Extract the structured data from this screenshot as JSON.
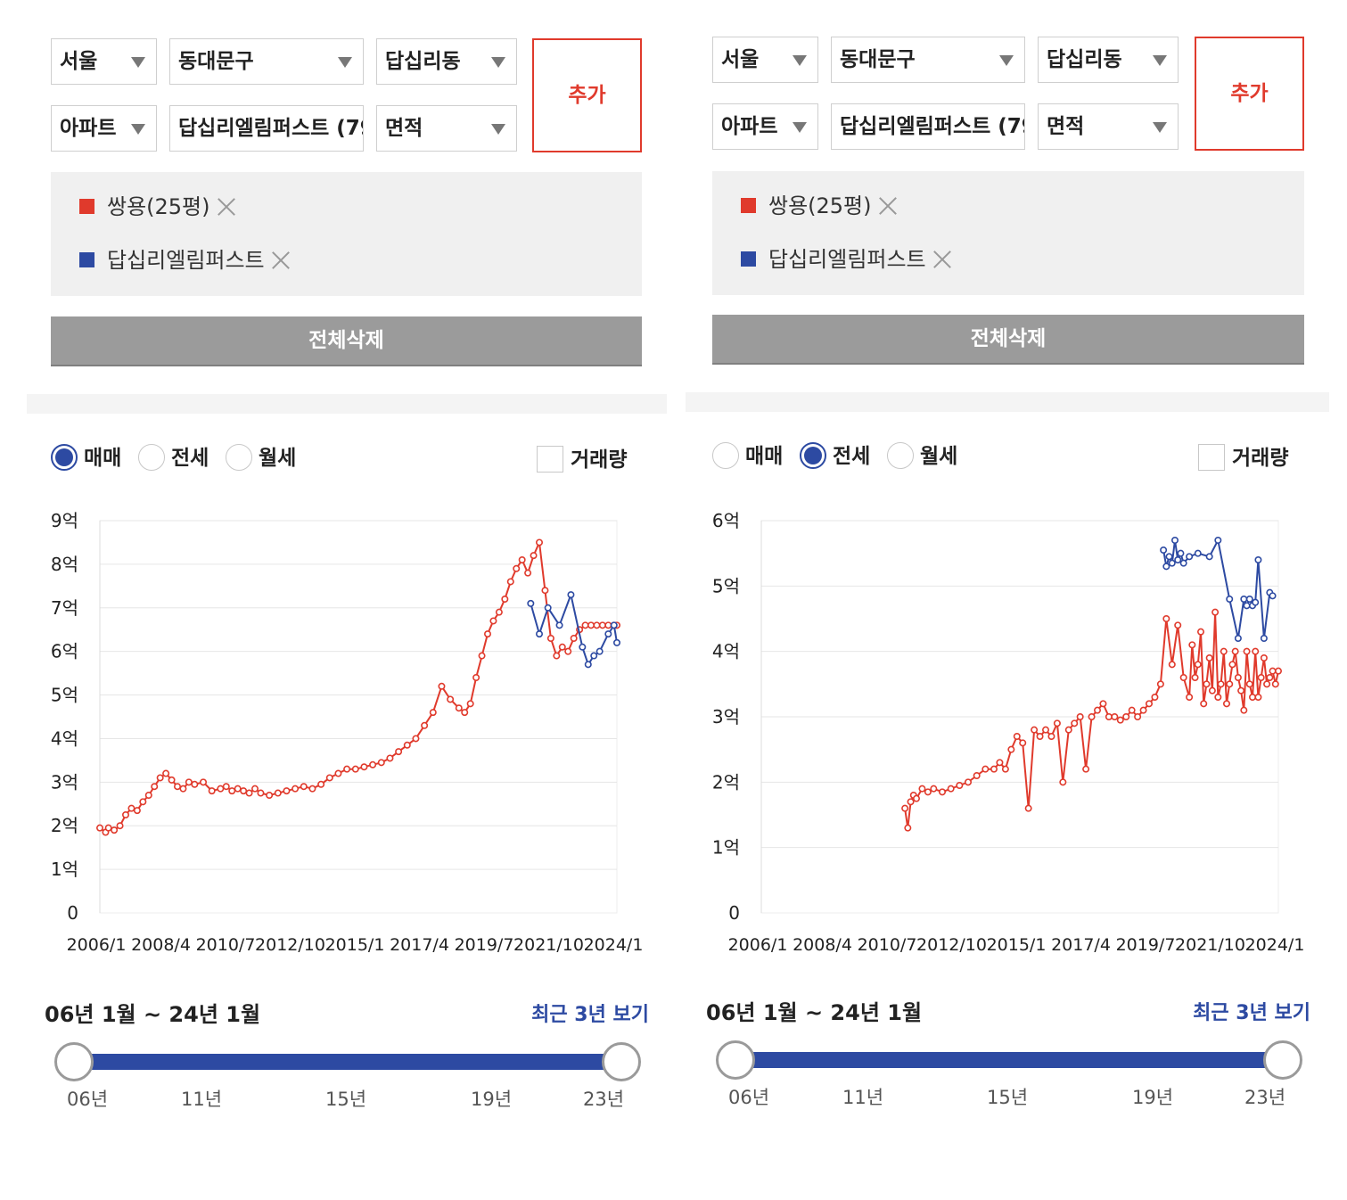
{
  "panels": [
    {
      "filters": {
        "city": "서울",
        "district": "동대문구",
        "dong": "답십리동",
        "type": "아파트",
        "complex": "답십리엘림퍼스트 (79",
        "area": "면적"
      },
      "add_label": "추가",
      "selected": [
        {
          "label": "쌍용(25평)",
          "color": "#e03a2c"
        },
        {
          "label": "답십리엘림퍼스트",
          "color": "#2d4aa2"
        }
      ],
      "clear_label": "전체삭제",
      "trade_types": [
        "매매",
        "전세",
        "월세"
      ],
      "active_trade": 0,
      "volume_label": "거래량",
      "period_label": "06년 1월 ~ 24년 1월",
      "recent_label": "최근 3년 보기",
      "slider": {
        "start_fraction": 0,
        "end_fraction": 1,
        "year_labels": [
          "06년",
          "11년",
          "15년",
          "19년",
          "23년"
        ]
      }
    },
    {
      "filters": {
        "city": "서울",
        "district": "동대문구",
        "dong": "답십리동",
        "type": "아파트",
        "complex": "답십리엘림퍼스트 (79",
        "area": "면적"
      },
      "add_label": "추가",
      "selected": [
        {
          "label": "쌍용(25평)",
          "color": "#e03a2c"
        },
        {
          "label": "답십리엘림퍼스트",
          "color": "#2d4aa2"
        }
      ],
      "clear_label": "전체삭제",
      "trade_types": [
        "매매",
        "전세",
        "월세"
      ],
      "active_trade": 1,
      "volume_label": "거래량",
      "period_label": "06년 1월 ~ 24년 1월",
      "recent_label": "최근 3년 보기",
      "slider": {
        "start_fraction": 0,
        "end_fraction": 1,
        "year_labels": [
          "06년",
          "11년",
          "15년",
          "19년",
          "23년"
        ]
      }
    }
  ],
  "chart_data": [
    {
      "type": "line",
      "title": "",
      "x_ticks": [
        "2006/1",
        "2008/4",
        "2010/7",
        "2012/10",
        "2015/1",
        "2017/4",
        "2019/7",
        "2021/10",
        "2024/1"
      ],
      "y_ticks": [
        "0",
        "1억",
        "2억",
        "3억",
        "4억",
        "5억",
        "6억",
        "7억",
        "8억",
        "9억"
      ],
      "xlim": [
        2006.0,
        2024.0
      ],
      "ylim": [
        0,
        9
      ],
      "unit": "억",
      "grid": true,
      "series": [
        {
          "name": "쌍용(25평)",
          "color": "#e03a2c",
          "x": [
            2006.0,
            2006.2,
            2006.3,
            2006.5,
            2006.7,
            2006.9,
            2007.1,
            2007.3,
            2007.5,
            2007.7,
            2007.9,
            2008.1,
            2008.3,
            2008.5,
            2008.7,
            2008.9,
            2009.1,
            2009.3,
            2009.6,
            2009.9,
            2010.2,
            2010.4,
            2010.6,
            2010.8,
            2011.0,
            2011.2,
            2011.4,
            2011.6,
            2011.9,
            2012.2,
            2012.5,
            2012.8,
            2013.1,
            2013.4,
            2013.7,
            2014.0,
            2014.3,
            2014.6,
            2014.9,
            2015.2,
            2015.5,
            2015.8,
            2016.1,
            2016.4,
            2016.7,
            2017.0,
            2017.3,
            2017.6,
            2017.9,
            2018.2,
            2018.5,
            2018.7,
            2018.9,
            2019.1,
            2019.3,
            2019.5,
            2019.7,
            2019.9,
            2020.1,
            2020.3,
            2020.5,
            2020.7,
            2020.9,
            2021.1,
            2021.3,
            2021.5,
            2021.7,
            2021.9,
            2022.1,
            2022.3,
            2022.5,
            2022.7,
            2022.9,
            2023.1,
            2023.3,
            2023.5,
            2023.7,
            2023.9,
            2024.0
          ],
          "y": [
            1.95,
            1.85,
            1.95,
            1.9,
            2.0,
            2.25,
            2.4,
            2.35,
            2.55,
            2.7,
            2.9,
            3.1,
            3.2,
            3.05,
            2.9,
            2.85,
            3.0,
            2.95,
            3.0,
            2.8,
            2.85,
            2.9,
            2.8,
            2.85,
            2.8,
            2.75,
            2.85,
            2.75,
            2.7,
            2.75,
            2.8,
            2.85,
            2.9,
            2.85,
            2.95,
            3.1,
            3.2,
            3.3,
            3.3,
            3.35,
            3.4,
            3.45,
            3.55,
            3.7,
            3.85,
            4.0,
            4.3,
            4.6,
            5.2,
            4.9,
            4.7,
            4.6,
            4.8,
            5.4,
            5.9,
            6.4,
            6.7,
            6.9,
            7.2,
            7.6,
            7.9,
            8.1,
            7.8,
            8.2,
            8.5,
            7.4,
            6.3,
            5.9,
            6.1,
            6.0,
            6.3,
            6.5,
            6.6,
            6.6,
            6.6,
            6.6,
            6.6,
            6.6,
            6.6
          ]
        },
        {
          "name": "답십리엘림퍼스트",
          "color": "#2d4aa2",
          "x": [
            2021.0,
            2021.3,
            2021.6,
            2022.0,
            2022.4,
            2022.8,
            2023.0,
            2023.2,
            2023.4,
            2023.7,
            2023.9,
            2024.0
          ],
          "y": [
            7.1,
            6.4,
            7.0,
            6.6,
            7.3,
            6.1,
            5.7,
            5.9,
            6.0,
            6.4,
            6.6,
            6.2
          ]
        }
      ]
    },
    {
      "type": "line",
      "title": "",
      "x_ticks": [
        "2006/1",
        "2008/4",
        "2010/7",
        "2012/10",
        "2015/1",
        "2017/4",
        "2019/7",
        "2021/10",
        "2024/1"
      ],
      "y_ticks": [
        "0",
        "1억",
        "2억",
        "3억",
        "4억",
        "5억",
        "6억"
      ],
      "xlim": [
        2006.0,
        2024.0
      ],
      "ylim": [
        0,
        6
      ],
      "unit": "억",
      "grid": true,
      "series": [
        {
          "name": "쌍용(25평)",
          "color": "#e03a2c",
          "x": [
            2011.0,
            2011.1,
            2011.2,
            2011.3,
            2011.4,
            2011.6,
            2011.8,
            2012.0,
            2012.3,
            2012.6,
            2012.9,
            2013.2,
            2013.5,
            2013.8,
            2014.1,
            2014.3,
            2014.5,
            2014.7,
            2014.9,
            2015.1,
            2015.3,
            2015.5,
            2015.7,
            2015.9,
            2016.1,
            2016.3,
            2016.5,
            2016.7,
            2016.9,
            2017.1,
            2017.3,
            2017.5,
            2017.7,
            2017.9,
            2018.1,
            2018.3,
            2018.5,
            2018.7,
            2018.9,
            2019.1,
            2019.3,
            2019.5,
            2019.7,
            2019.9,
            2020.1,
            2020.3,
            2020.5,
            2020.7,
            2020.9,
            2021.0,
            2021.1,
            2021.2,
            2021.3,
            2021.4,
            2021.5,
            2021.6,
            2021.7,
            2021.8,
            2021.9,
            2022.0,
            2022.1,
            2022.2,
            2022.3,
            2022.4,
            2022.5,
            2022.6,
            2022.7,
            2022.8,
            2022.9,
            2023.0,
            2023.1,
            2023.2,
            2023.3,
            2023.4,
            2023.5,
            2023.6,
            2023.7,
            2023.8,
            2023.9,
            2024.0
          ],
          "y": [
            1.6,
            1.3,
            1.7,
            1.8,
            1.75,
            1.9,
            1.85,
            1.9,
            1.85,
            1.9,
            1.95,
            2.0,
            2.1,
            2.2,
            2.2,
            2.3,
            2.2,
            2.5,
            2.7,
            2.6,
            1.6,
            2.8,
            2.7,
            2.8,
            2.7,
            2.9,
            2.0,
            2.8,
            2.9,
            3.0,
            2.2,
            3.0,
            3.1,
            3.2,
            3.0,
            3.0,
            2.95,
            3.0,
            3.1,
            3.0,
            3.1,
            3.2,
            3.3,
            3.5,
            4.5,
            3.8,
            4.4,
            3.6,
            3.3,
            4.1,
            3.6,
            3.8,
            4.3,
            3.2,
            3.5,
            3.9,
            3.4,
            4.6,
            3.3,
            3.5,
            4.0,
            3.2,
            3.5,
            3.8,
            4.0,
            3.6,
            3.4,
            3.1,
            4.0,
            3.5,
            3.3,
            4.0,
            3.3,
            3.6,
            3.9,
            3.5,
            3.6,
            3.7,
            3.5,
            3.7
          ]
        },
        {
          "name": "답십리엘림퍼스트",
          "color": "#2d4aa2",
          "x": [
            2020.0,
            2020.1,
            2020.2,
            2020.3,
            2020.4,
            2020.5,
            2020.6,
            2020.7,
            2020.9,
            2021.2,
            2021.6,
            2021.9,
            2022.3,
            2022.6,
            2022.8,
            2022.9,
            2023.0,
            2023.1,
            2023.2,
            2023.3,
            2023.5,
            2023.7,
            2023.8
          ],
          "y": [
            5.55,
            5.3,
            5.45,
            5.35,
            5.7,
            5.4,
            5.5,
            5.35,
            5.45,
            5.5,
            5.45,
            5.7,
            4.8,
            4.2,
            4.8,
            4.7,
            4.8,
            4.7,
            4.75,
            5.4,
            4.2,
            4.9,
            4.85
          ]
        }
      ]
    }
  ]
}
